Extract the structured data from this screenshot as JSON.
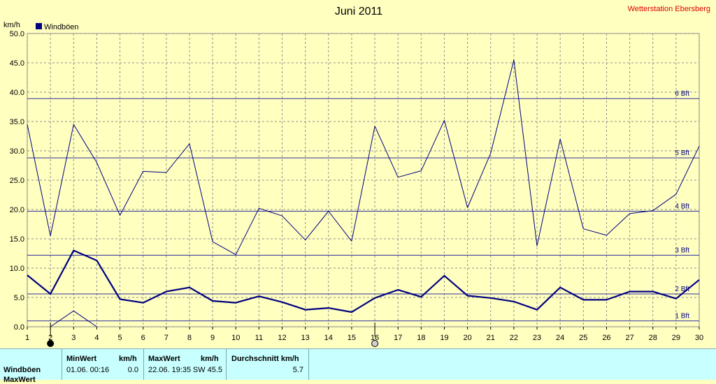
{
  "chart_data": {
    "type": "line",
    "title": "Juni 2011",
    "station": "Wetterstation Ebersberg",
    "ylabel": "km/h",
    "ylim": [
      0,
      50
    ],
    "yticks": [
      "0.0",
      "5.0",
      "10.0",
      "15.0",
      "20.0",
      "25.0",
      "30.0",
      "35.0",
      "40.0",
      "45.0",
      "50.0"
    ],
    "x": [
      1,
      2,
      3,
      4,
      5,
      6,
      7,
      8,
      9,
      10,
      11,
      12,
      13,
      14,
      15,
      16,
      17,
      18,
      19,
      20,
      21,
      22,
      23,
      24,
      25,
      26,
      27,
      28,
      29,
      30
    ],
    "legend": [
      "Windböen"
    ],
    "grid": true,
    "series": [
      {
        "name": "Windböen",
        "color": "#000080",
        "values": [
          34.5,
          15.5,
          34.5,
          28,
          19,
          26.5,
          26.3,
          31.2,
          14.5,
          12.3,
          20.2,
          18.9,
          14.8,
          19.7,
          14.6,
          34.2,
          25.5,
          26.6,
          35.2,
          20.3,
          29.6,
          45.5,
          13.8,
          32,
          16.7,
          15.6,
          19.3,
          19.8,
          22.6,
          30.8
        ]
      },
      {
        "name": "",
        "color": "#000080",
        "values": [
          8.8,
          5.6,
          13,
          11.3,
          4.7,
          4.1,
          6,
          6.7,
          4.4,
          4.1,
          5.2,
          4.2,
          2.9,
          3.2,
          2.5,
          4.9,
          6.3,
          5.1,
          8.7,
          5.3,
          4.9,
          4.3,
          2.9,
          6.7,
          4.6,
          4.6,
          6,
          6,
          4.8,
          8
        ]
      },
      {
        "name": "",
        "color": "#000080",
        "values": [
          null,
          0,
          2.7,
          0,
          null,
          null,
          null,
          null,
          null,
          null,
          null,
          null,
          null,
          null,
          null,
          null,
          null,
          null,
          null,
          null,
          null,
          null,
          null,
          null,
          null,
          null,
          null,
          null,
          null,
          null
        ]
      }
    ],
    "beaufort_lines": [
      {
        "label": "1 Bft",
        "value": 1
      },
      {
        "label": "2 Bft",
        "value": 5.6
      },
      {
        "label": "3 Bft",
        "value": 12.2
      },
      {
        "label": "4 Bft",
        "value": 19.7
      },
      {
        "label": "5 Bft",
        "value": 28.8
      },
      {
        "label": "6 Bft",
        "value": 38.9
      }
    ],
    "markers": [
      {
        "day": 2,
        "style": "filled"
      },
      {
        "day": 16,
        "style": "open"
      }
    ]
  },
  "stats": {
    "headers": {
      "minwert": "MinWert",
      "min_unit": "km/h",
      "maxwert": "MaxWert",
      "max_unit": "km/h",
      "durchschnitt": "Durchschnitt km/h"
    },
    "row_label": "Windböen",
    "row_label_2": "MaxWert",
    "min_date": "01.06.  00:16",
    "min_value": "0.0",
    "max_date": "22.06.  19:35",
    "max_value": "SW 45.5",
    "avg_value": "5.7"
  }
}
